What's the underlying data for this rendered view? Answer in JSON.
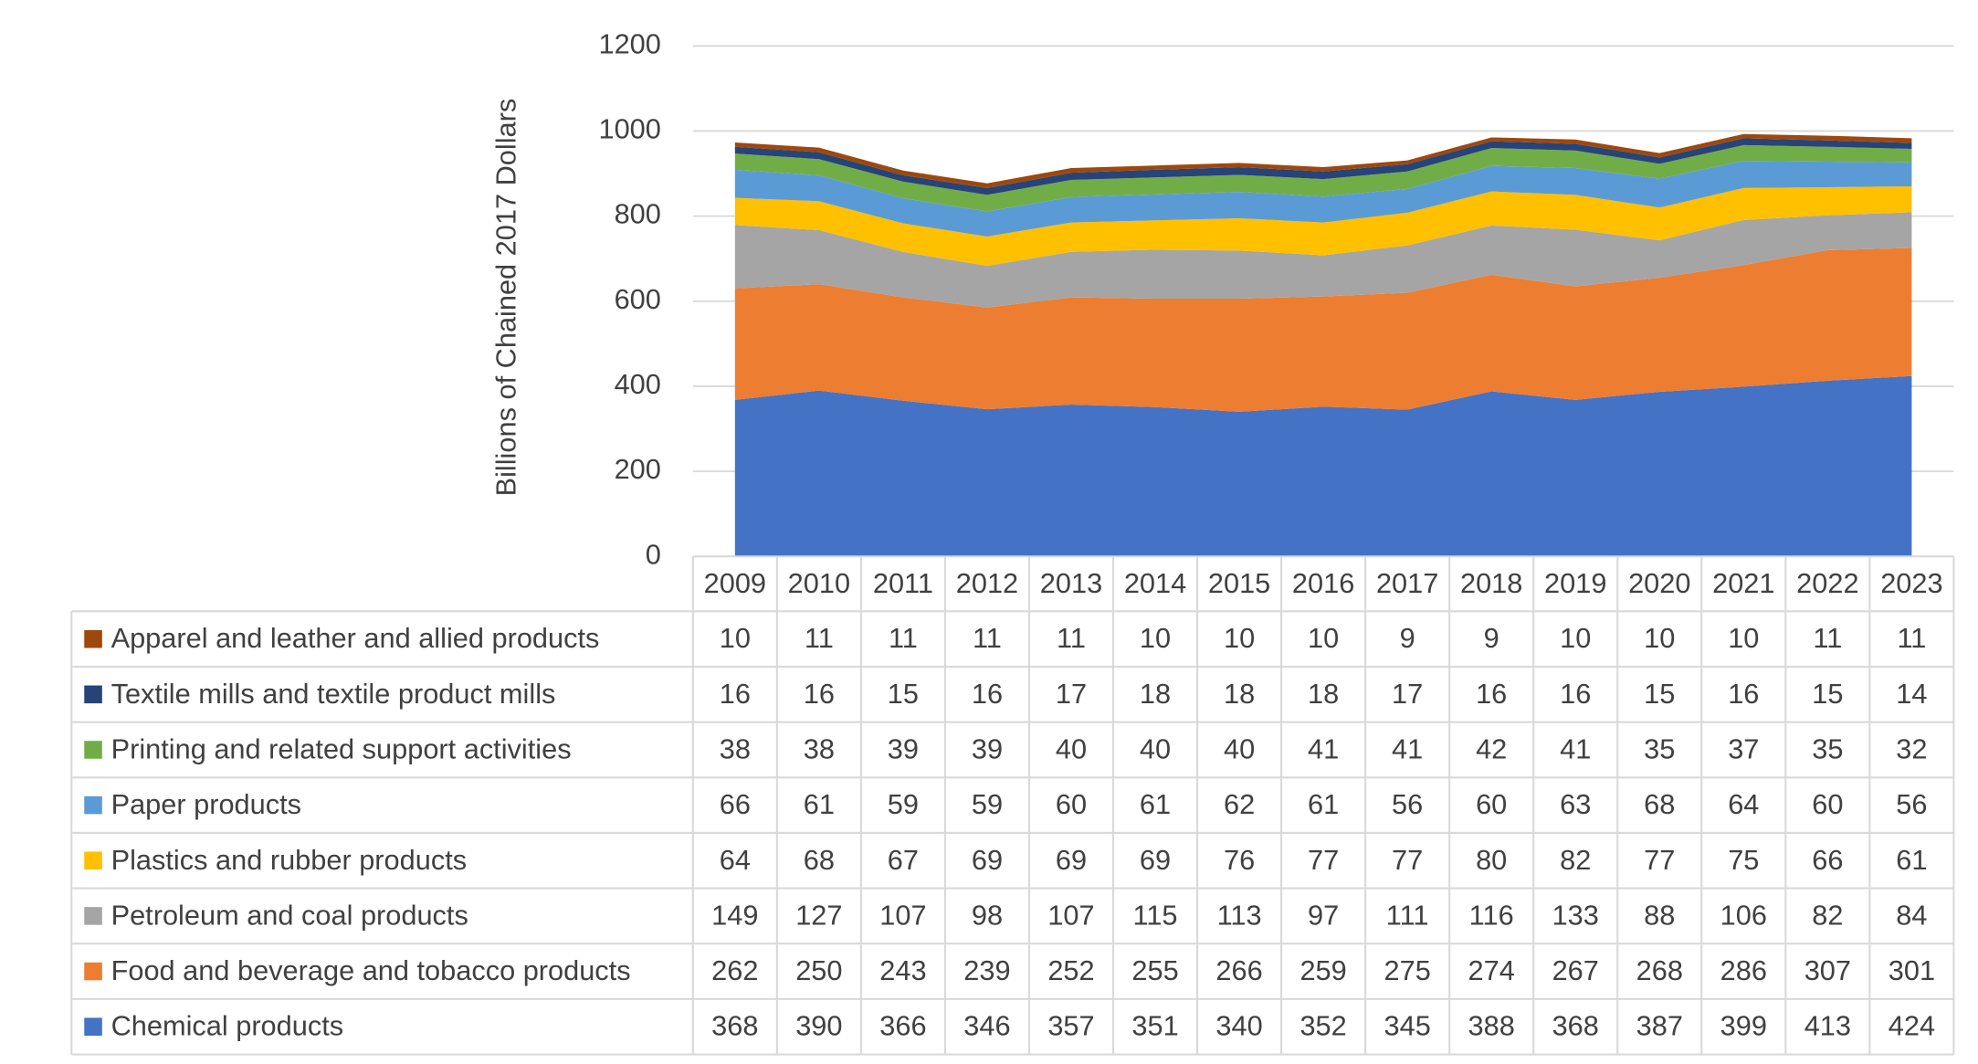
{
  "chart_data": {
    "type": "stacked-area",
    "y_label": "Billions of Chained 2017 Dollars",
    "categories": [
      "2009",
      "2010",
      "2011",
      "2012",
      "2013",
      "2014",
      "2015",
      "2016",
      "2017",
      "2018",
      "2019",
      "2020",
      "2021",
      "2022",
      "2023"
    ],
    "ylim": [
      0,
      1200
    ],
    "yticks": [
      0,
      200,
      400,
      600,
      800,
      1000,
      1200
    ],
    "grid": true,
    "series": [
      {
        "name": "Chemical products",
        "color": "#4472c4",
        "values": [
          368,
          390,
          366,
          346,
          357,
          351,
          340,
          352,
          345,
          388,
          368,
          387,
          399,
          413,
          424
        ]
      },
      {
        "name": "Food and beverage and tobacco products",
        "color": "#ed7d31",
        "values": [
          262,
          250,
          243,
          239,
          252,
          255,
          266,
          259,
          275,
          274,
          267,
          268,
          286,
          307,
          301
        ]
      },
      {
        "name": "Petroleum and coal products",
        "color": "#a5a5a5",
        "values": [
          149,
          127,
          107,
          98,
          107,
          115,
          113,
          97,
          111,
          116,
          133,
          88,
          106,
          82,
          84
        ]
      },
      {
        "name": "Plastics and rubber products",
        "color": "#ffc000",
        "values": [
          64,
          68,
          67,
          69,
          69,
          69,
          76,
          77,
          77,
          80,
          82,
          77,
          75,
          66,
          61
        ]
      },
      {
        "name": "Paper products",
        "color": "#5b9bd5",
        "values": [
          66,
          61,
          59,
          59,
          60,
          61,
          62,
          61,
          56,
          60,
          63,
          68,
          64,
          60,
          56
        ]
      },
      {
        "name": "Printing and related support activities",
        "color": "#70ad47",
        "values": [
          38,
          38,
          39,
          39,
          40,
          40,
          40,
          41,
          41,
          42,
          41,
          35,
          37,
          35,
          32
        ]
      },
      {
        "name": "Textile mills and textile product mills",
        "color": "#264478",
        "values": [
          16,
          16,
          15,
          16,
          17,
          18,
          18,
          18,
          17,
          16,
          16,
          15,
          16,
          15,
          14
        ]
      },
      {
        "name": "Apparel and leather and allied products",
        "color": "#9e480e",
        "values": [
          10,
          11,
          11,
          11,
          11,
          10,
          10,
          10,
          9,
          9,
          10,
          10,
          10,
          11,
          11
        ]
      }
    ]
  }
}
